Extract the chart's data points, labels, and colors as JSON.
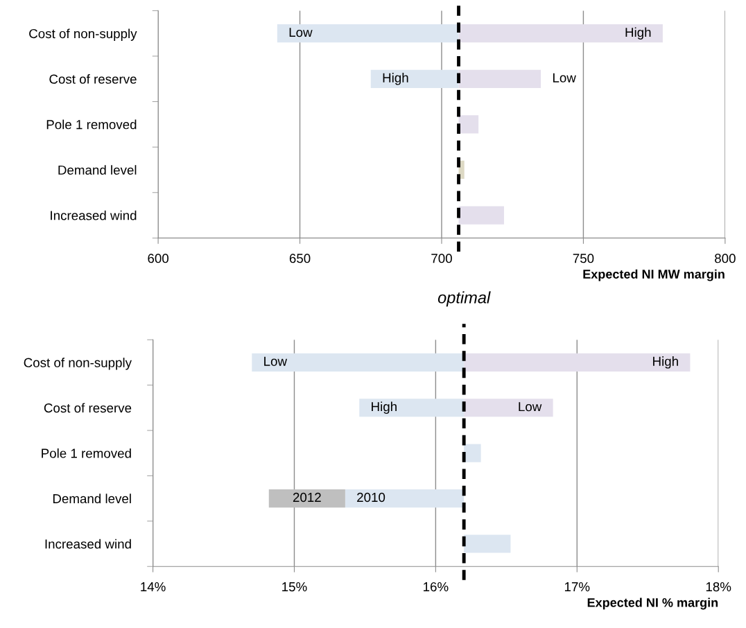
{
  "chart_data": [
    {
      "type": "bar",
      "orientation": "horizontal",
      "xlabel": "Expected NI MW margin",
      "categories": [
        "Cost of non-supply",
        "Cost of reserve",
        "Pole 1 removed",
        "Demand level",
        "Increased wind"
      ],
      "series": [
        {
          "name": "Low",
          "color": "#dce6f1",
          "base": [
            706,
            null,
            null,
            null,
            null
          ],
          "values": [
            -64,
            null,
            null,
            null,
            null
          ]
        },
        {
          "name": "High",
          "color": "#dce6f1",
          "base": [
            null,
            706,
            null,
            null,
            null
          ],
          "values": [
            null,
            -31,
            null,
            null,
            null
          ]
        },
        {
          "name": "High",
          "color": "#e4dfec",
          "base": [
            706,
            null,
            null,
            null,
            null
          ],
          "values": [
            72,
            null,
            null,
            null,
            null
          ]
        },
        {
          "name": "Low",
          "color": "#e4dfec",
          "base": [
            null,
            706,
            null,
            null,
            null
          ],
          "values": [
            null,
            29,
            null,
            null,
            null
          ]
        },
        {
          "color": "#e4dfec",
          "base": [
            null,
            null,
            706,
            null,
            706
          ],
          "values": [
            null,
            null,
            7,
            null,
            16
          ]
        },
        {
          "color": "#ddd9c4",
          "base": [
            null,
            null,
            null,
            706,
            null
          ],
          "values": [
            null,
            null,
            null,
            2,
            null
          ]
        }
      ],
      "xlim": [
        600,
        800
      ],
      "xticks": [
        600,
        650,
        700,
        750,
        800
      ],
      "grid": "x",
      "ref_lines": [
        {
          "axis": "x",
          "value": 706,
          "color": "#000000",
          "line_style": "dashed"
        }
      ]
    },
    {
      "type": "bar",
      "orientation": "horizontal",
      "xlabel": "Expected NI % margin",
      "categories": [
        "Cost of non-supply",
        "Cost of reserve",
        "Pole 1 removed",
        "Demand level",
        "Increased wind"
      ],
      "series": [
        {
          "name": "Low",
          "color": "#dce6f1",
          "base": [
            16.2,
            null,
            null,
            null,
            null
          ],
          "values": [
            -1.5,
            null,
            null,
            null,
            null
          ]
        },
        {
          "name": "High",
          "color": "#dce6f1",
          "base": [
            null,
            16.2,
            null,
            null,
            null
          ],
          "values": [
            null,
            -0.74,
            null,
            null,
            null
          ]
        },
        {
          "name": "2010",
          "color": "#dce6f1",
          "base": [
            null,
            null,
            null,
            16.2,
            null
          ],
          "values": [
            null,
            null,
            null,
            -0.84,
            null
          ]
        },
        {
          "color": "#dce6f1",
          "base": [
            null,
            null,
            16.2,
            null,
            16.2
          ],
          "values": [
            null,
            null,
            0.12,
            null,
            0.33
          ]
        },
        {
          "name": "High",
          "color": "#e4dfec",
          "base": [
            16.2,
            null,
            null,
            null,
            null
          ],
          "values": [
            1.6,
            null,
            null,
            null,
            null
          ]
        },
        {
          "name": "Low",
          "color": "#e4dfec",
          "base": [
            null,
            16.2,
            null,
            null,
            null
          ],
          "values": [
            null,
            0.63,
            null,
            null,
            null
          ]
        },
        {
          "name": "2012",
          "color": "#bfbfbf",
          "base": [
            null,
            null,
            null,
            15.36,
            null
          ],
          "values": [
            null,
            null,
            null,
            -0.54,
            null
          ]
        }
      ],
      "xlim": [
        14,
        18
      ],
      "xticks": [
        {
          "value": 14,
          "label": "14%"
        },
        {
          "value": 15,
          "label": "15%"
        },
        {
          "value": 16,
          "label": "16%"
        },
        {
          "value": 17,
          "label": "17%"
        },
        {
          "value": 18,
          "label": "18%"
        }
      ],
      "grid": "x",
      "ref_lines": [
        {
          "axis": "x",
          "value": 16.2,
          "label": "optimal",
          "color": "#000000",
          "line_style": "dashed"
        }
      ]
    }
  ]
}
